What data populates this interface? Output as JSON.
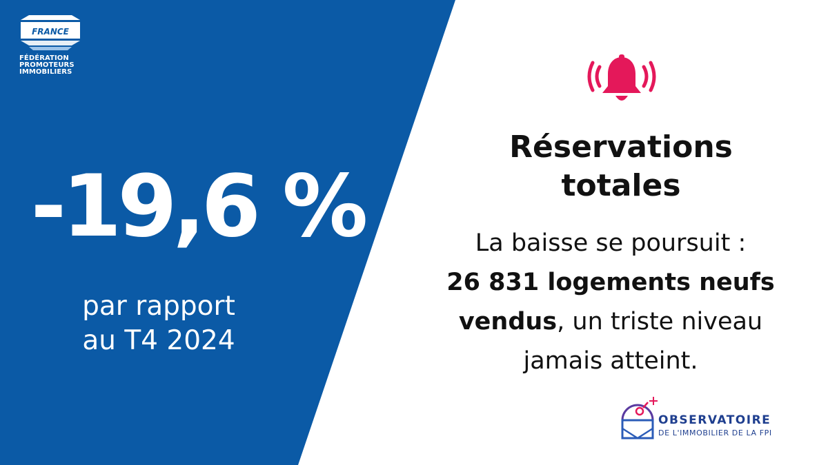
{
  "colors": {
    "panel_blue": "#0b5aa6",
    "alert_pink": "#e4185a",
    "text_dark": "#111111",
    "observatoire_blue": "#1f3f8f"
  },
  "brand": {
    "badge_text": "FRANCE",
    "name_lines": [
      "FÉDÉRATION",
      "PROMOTEURS",
      "IMMOBILIERS"
    ]
  },
  "stat": {
    "value": "-19,6 %",
    "caption_lines": [
      "par rapport",
      "au T4 2024"
    ]
  },
  "alert": {
    "icon": "bell-ringing-icon"
  },
  "headline": {
    "lines": [
      "Réservations",
      "totales"
    ]
  },
  "body": {
    "line1": "La baisse se poursuit :",
    "line2_bold": "26 831 logements neufs",
    "line3_bold": "vendus",
    "line3_rest": ", un triste niveau",
    "line4": "jamais atteint."
  },
  "observatoire": {
    "icon": "observatory-icon",
    "title": "OBSERVATOIRE",
    "subtitle": "DE L'IMMOBILIER DE LA FPI"
  }
}
